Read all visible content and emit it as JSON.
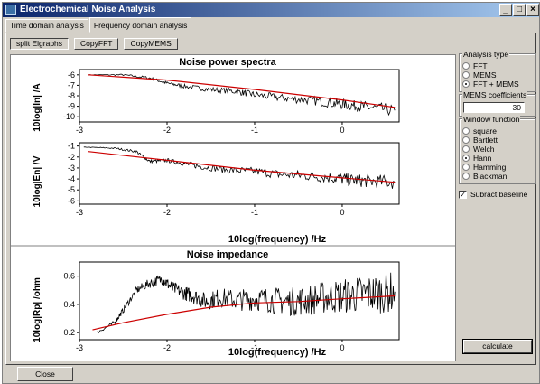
{
  "window": {
    "title": "Electrochemical Noise Analysis",
    "minimize": "_",
    "restore": "□",
    "close": "×"
  },
  "tabs": [
    {
      "label": "Time domain analysis"
    },
    {
      "label": "Frequency domain analysis"
    }
  ],
  "toolbar": {
    "split_label": "split Elgraphs",
    "copy_fft_label": "CopyFFT",
    "copy_mems_label": "CopyMEMS"
  },
  "plots": {
    "spectra_title": "Noise power spectra",
    "impedance_title": "Noise impedance",
    "in_ylabel": "10log|In| /A",
    "en_ylabel": "10log|En| /V",
    "rp_ylabel": "10log|Rp| /ohm",
    "xlabel": "10log(frequency) /Hz"
  },
  "chart_data": [
    {
      "type": "line",
      "title": "Noise power spectra",
      "ylabel": "10log|In| /A",
      "xlabel": "",
      "xlim": [
        -3.0,
        0.65
      ],
      "ylim": [
        -10.5,
        -5.5
      ],
      "x_ticks": [
        -3,
        -2,
        -1,
        0
      ],
      "y_ticks": [
        -6,
        -7,
        -8,
        -9,
        -10
      ],
      "series": [
        {
          "color": "#000000",
          "x": [
            -2.9,
            -2.5,
            -2.2,
            -2.0,
            -1.8,
            -1.5,
            -1.2,
            -1.0,
            -0.7,
            -0.4,
            -0.1,
            0.1,
            0.3,
            0.6
          ],
          "y": [
            -6.0,
            -6.0,
            -6.3,
            -6.8,
            -7.1,
            -7.4,
            -7.6,
            -7.9,
            -8.2,
            -8.4,
            -8.7,
            -8.9,
            -9.1,
            -9.4
          ]
        },
        {
          "color": "#cc0000",
          "x": [
            -2.9,
            -2.0,
            -1.0,
            0.0,
            0.6
          ],
          "y": [
            -6.0,
            -6.5,
            -7.4,
            -8.4,
            -9.1
          ]
        }
      ]
    },
    {
      "type": "line",
      "ylabel": "10log|En| /V",
      "xlabel": "10log(frequency) /Hz",
      "xlim": [
        -3.0,
        0.65
      ],
      "ylim": [
        -6.3,
        -0.7
      ],
      "x_ticks": [
        -3,
        -2,
        -1,
        0
      ],
      "y_ticks": [
        -1,
        -2,
        -3,
        -4,
        -5,
        -6
      ],
      "series": [
        {
          "color": "#000000",
          "x": [
            -2.95,
            -2.6,
            -2.35,
            -2.2,
            -2.0,
            -1.8,
            -1.6,
            -1.3,
            -1.0,
            -0.7,
            -0.4,
            -0.1,
            0.1,
            0.3,
            0.6
          ],
          "y": [
            -1.1,
            -1.2,
            -1.5,
            -2.4,
            -2.3,
            -2.6,
            -2.9,
            -3.2,
            -3.3,
            -3.6,
            -3.7,
            -3.9,
            -4.1,
            -4.2,
            -4.3
          ]
        },
        {
          "color": "#cc0000",
          "x": [
            -2.9,
            -2.0,
            -1.0,
            0.0,
            0.6
          ],
          "y": [
            -1.5,
            -2.3,
            -3.2,
            -3.9,
            -4.3
          ]
        }
      ]
    },
    {
      "type": "line",
      "title": "Noise impedance",
      "ylabel": "10log|Rp| /ohm",
      "xlabel": "10log(frequency) /Hz",
      "xlim": [
        -3.0,
        0.65
      ],
      "ylim": [
        0.15,
        0.7
      ],
      "x_ticks": [
        -3,
        -2,
        -1,
        0
      ],
      "y_ticks": [
        0.2,
        0.4,
        0.6
      ],
      "series": [
        {
          "color": "#000000",
          "x": [
            -2.8,
            -2.6,
            -2.5,
            -2.35,
            -2.2,
            -2.05,
            -1.95,
            -1.8,
            -1.7,
            -1.55,
            -1.4,
            -1.2,
            -1.0,
            -0.8,
            -0.6,
            -0.4,
            -0.2,
            0.0,
            0.2,
            0.4,
            0.6
          ],
          "y": [
            0.2,
            0.27,
            0.36,
            0.5,
            0.55,
            0.58,
            0.52,
            0.48,
            0.46,
            0.42,
            0.45,
            0.43,
            0.44,
            0.43,
            0.42,
            0.43,
            0.45,
            0.46,
            0.47,
            0.48,
            0.49
          ]
        },
        {
          "color": "#cc0000",
          "x": [
            -2.85,
            -2.5,
            -2.0,
            -1.5,
            -1.0,
            -0.5,
            0.0,
            0.3,
            0.6
          ],
          "y": [
            0.22,
            0.27,
            0.33,
            0.38,
            0.41,
            0.42,
            0.44,
            0.45,
            0.46
          ]
        }
      ]
    }
  ],
  "side": {
    "analysis_type": {
      "title": "Analysis type",
      "options": [
        "FFT",
        "MEMS",
        "FFT + MEMS"
      ],
      "selected": 2
    },
    "mems": {
      "title": "MEMS coefficients",
      "value": "30"
    },
    "window_function": {
      "title": "Window function",
      "options": [
        "square",
        "Bartlett",
        "Welch",
        "Hann",
        "Hamming",
        "Blackman"
      ],
      "selected": 3
    },
    "subtract_baseline": {
      "label": "Subract baseline",
      "mark": "✓"
    },
    "calculate_label": "calculate"
  },
  "footer": {
    "close_label": "Close"
  }
}
